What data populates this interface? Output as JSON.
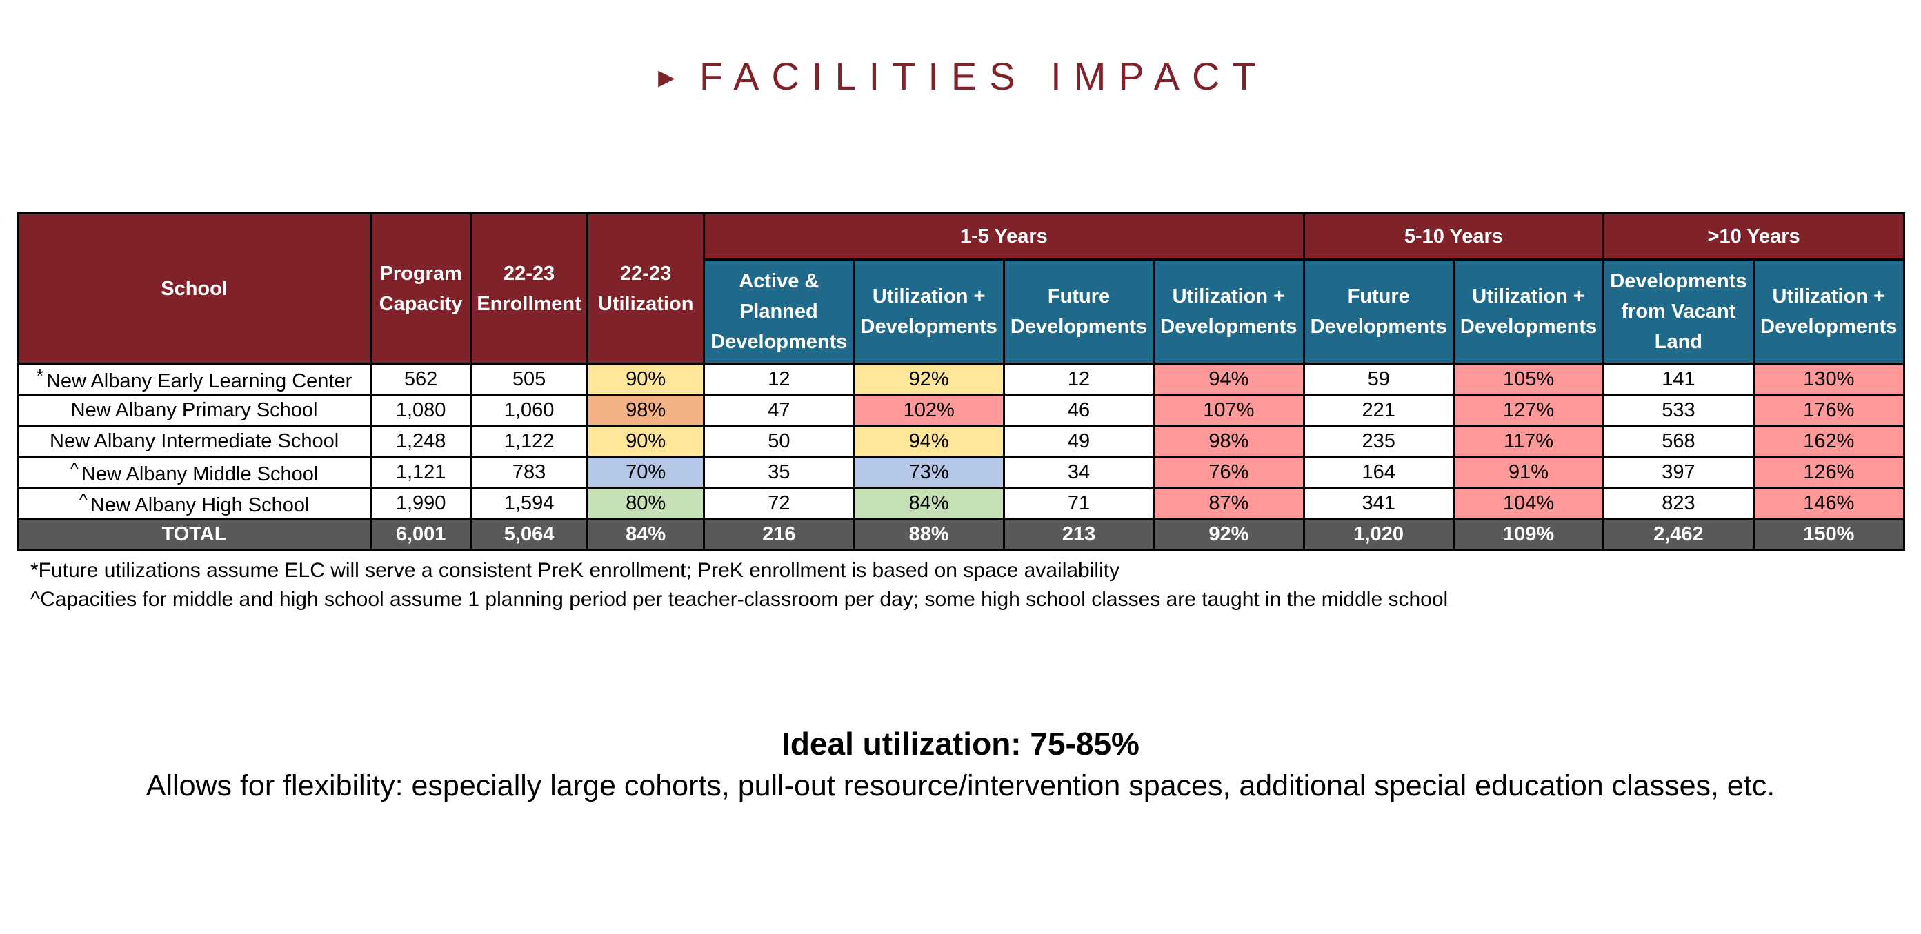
{
  "title": "FACILITIES IMPACT",
  "arrow": "►",
  "headers": {
    "school": "School",
    "capacity": [
      "Program",
      "Capacity"
    ],
    "enrollment": [
      "22-23",
      "Enrollment"
    ],
    "utilization": [
      "22-23",
      "Utilization"
    ],
    "group1": "1-5 Years",
    "group2": "5-10 Years",
    "group3": ">10 Years",
    "active": [
      "Active &",
      "Planned",
      "Developments"
    ],
    "util_dev": [
      "Utilization +",
      "Developments"
    ],
    "future": [
      "Future",
      "Developments"
    ],
    "vacant": [
      "Developments",
      "from Vacant",
      "Land"
    ]
  },
  "rows": [
    {
      "mark": "*",
      "school": "New Albany Early Learning Center",
      "capacity": "562",
      "enrollment": "505",
      "util": "90%",
      "active": "12",
      "util1": "92%",
      "future1": "12",
      "util2": "94%",
      "future2": "59",
      "util3": "105%",
      "vacant": "141",
      "util4": "130%"
    },
    {
      "mark": "",
      "school": "New Albany Primary School",
      "capacity": "1,080",
      "enrollment": "1,060",
      "util": "98%",
      "active": "47",
      "util1": "102%",
      "future1": "46",
      "util2": "107%",
      "future2": "221",
      "util3": "127%",
      "vacant": "533",
      "util4": "176%"
    },
    {
      "mark": "",
      "school": "New Albany Intermediate School",
      "capacity": "1,248",
      "enrollment": "1,122",
      "util": "90%",
      "active": "50",
      "util1": "94%",
      "future1": "49",
      "util2": "98%",
      "future2": "235",
      "util3": "117%",
      "vacant": "568",
      "util4": "162%"
    },
    {
      "mark": "^",
      "school": "New Albany Middle School",
      "capacity": "1,121",
      "enrollment": "783",
      "util": "70%",
      "active": "35",
      "util1": "73%",
      "future1": "34",
      "util2": "76%",
      "future2": "164",
      "util3": "91%",
      "vacant": "397",
      "util4": "126%"
    },
    {
      "mark": "^",
      "school": "New Albany High School",
      "capacity": "1,990",
      "enrollment": "1,594",
      "util": "80%",
      "active": "72",
      "util1": "84%",
      "future1": "71",
      "util2": "87%",
      "future2": "341",
      "util3": "104%",
      "vacant": "823",
      "util4": "146%"
    }
  ],
  "total": {
    "label": "TOTAL",
    "capacity": "6,001",
    "enrollment": "5,064",
    "util": "84%",
    "active": "216",
    "util1": "88%",
    "future1": "213",
    "util2": "92%",
    "future2": "1,020",
    "util3": "109%",
    "vacant": "2,462",
    "util4": "150%"
  },
  "footnotes": [
    "*Future utilizations assume ELC will serve a consistent PreK enrollment; PreK enrollment is based on space availability",
    "^Capacities for middle and high school assume 1 planning period per teacher-classroom per day; some high school classes are taught in the middle school"
  ],
  "ideal": "Ideal utilization: 75-85%",
  "allows": "Allows for flexibility: especially large cohorts, pull-out resource/intervention spaces, additional special education classes, etc.",
  "colors": {
    "maroon": "#7f2229",
    "teal": "#1f6a8a",
    "total_gray": "#595959",
    "yellow": "#ffe699",
    "orange": "#f4b183",
    "pink": "#ff9999",
    "blue": "#b4c7e7",
    "green": "#c5e0b4"
  }
}
